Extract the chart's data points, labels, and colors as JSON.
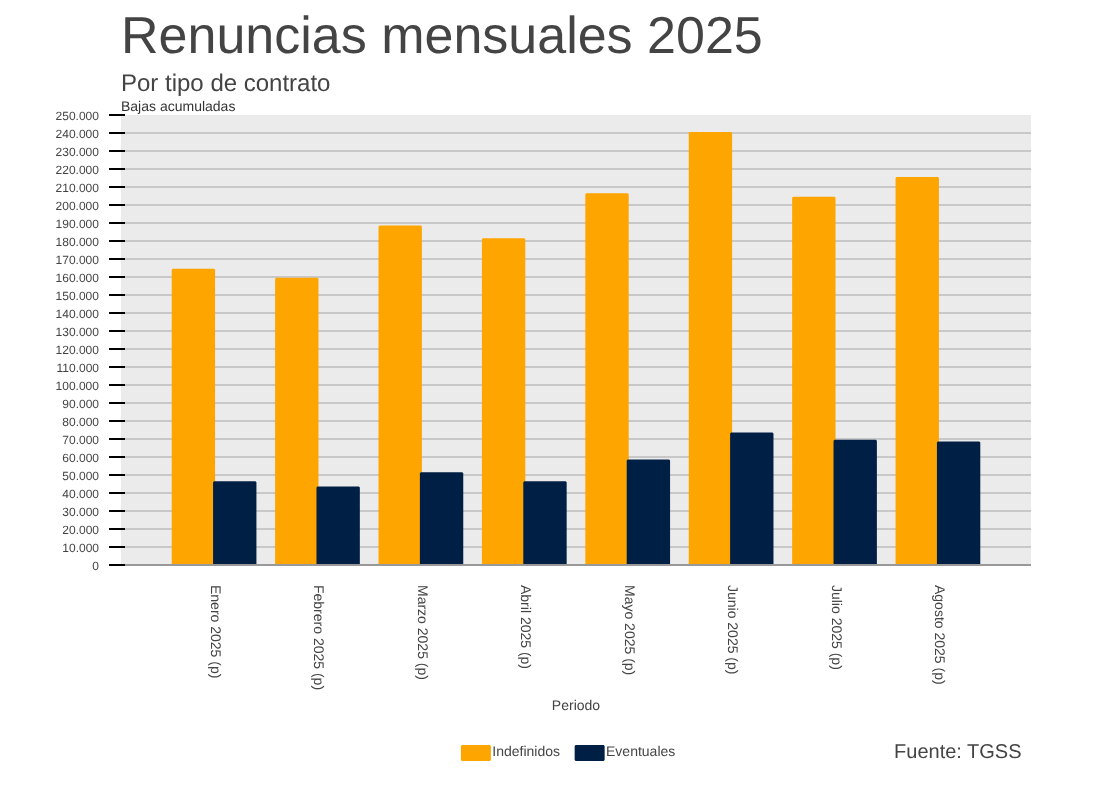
{
  "chart_data": {
    "type": "bar",
    "title": "Renuncias mensuales 2025",
    "subtitle": "Por tipo de contrato",
    "ylabel": "Bajas acumuladas",
    "xlabel": "Periodo",
    "categories": [
      "Enero 2025 (p)",
      "Febrero 2025 (p)",
      "Marzo 2025 (p)",
      "Abril 2025 (p)",
      "Mayo 2025 (p)",
      "Junio 2025 (p)",
      "Julio 2025 (p)",
      "Agosto 2025 (p)"
    ],
    "series": [
      {
        "name": "Indefinidos",
        "color": "#ffa500",
        "values": [
          164000,
          159000,
          188000,
          181000,
          206000,
          240000,
          204000,
          215000
        ]
      },
      {
        "name": "Eventuales",
        "color": "#001f45",
        "values": [
          46000,
          43000,
          51000,
          46000,
          58000,
          73000,
          69000,
          68000
        ]
      }
    ],
    "ylim": [
      0,
      250000
    ],
    "yticks": [
      {
        "value": 0,
        "label": "0"
      },
      {
        "value": 10000,
        "label": "10.000"
      },
      {
        "value": 20000,
        "label": "20.000"
      },
      {
        "value": 30000,
        "label": "30.000"
      },
      {
        "value": 40000,
        "label": "40.000"
      },
      {
        "value": 50000,
        "label": "50.000"
      },
      {
        "value": 60000,
        "label": "60.000"
      },
      {
        "value": 70000,
        "label": "70.000"
      },
      {
        "value": 80000,
        "label": "80.000"
      },
      {
        "value": 90000,
        "label": "90.000"
      },
      {
        "value": 100000,
        "label": "100.000"
      },
      {
        "value": 110000,
        "label": "110.000"
      },
      {
        "value": 120000,
        "label": "120.000"
      },
      {
        "value": 130000,
        "label": "130.000"
      },
      {
        "value": 140000,
        "label": "140.000"
      },
      {
        "value": 150000,
        "label": "150.000"
      },
      {
        "value": 160000,
        "label": "160.000"
      },
      {
        "value": 170000,
        "label": "170.000"
      },
      {
        "value": 180000,
        "label": "180.000"
      },
      {
        "value": 190000,
        "label": "190.000"
      },
      {
        "value": 200000,
        "label": "200.000"
      },
      {
        "value": 210000,
        "label": "210.000"
      },
      {
        "value": 220000,
        "label": "220.000"
      },
      {
        "value": 230000,
        "label": "230.000"
      },
      {
        "value": 240000,
        "label": "240.000"
      },
      {
        "value": 250000,
        "label": "250.000"
      }
    ],
    "grid": "y",
    "legend": "bottom",
    "annotations": [
      "Fuente: TGSS"
    ]
  }
}
